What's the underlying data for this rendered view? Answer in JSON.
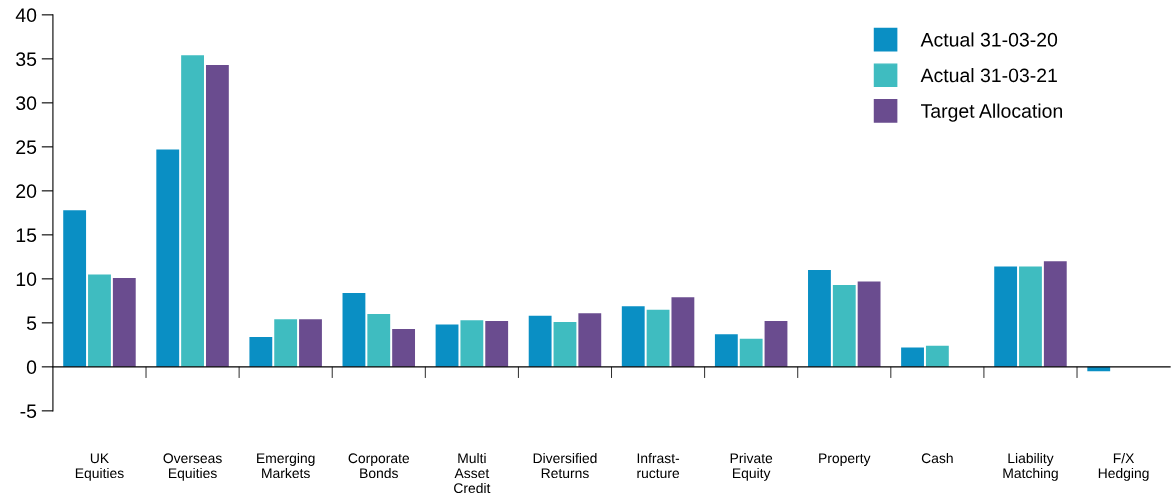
{
  "chart_data": {
    "type": "bar",
    "categories": [
      "UK\nEquities",
      "Overseas\nEquities",
      "Emerging\nMarkets",
      "Corporate\nBonds",
      "Multi\nAsset\nCredit",
      "Diversified\nReturns",
      "Infrast-\nructure",
      "Private\nEquity",
      "Property",
      "Cash",
      "Liability\nMatching",
      "F/X\nHedging"
    ],
    "series": [
      {
        "name": "Actual 31-03-20",
        "color": "#0a8fc4",
        "values": [
          17.8,
          24.7,
          3.4,
          8.4,
          4.8,
          5.8,
          6.9,
          3.7,
          11,
          2.2,
          11.4,
          -0.5
        ]
      },
      {
        "name": "Actual 31-03-21",
        "color": "#3fbcc0",
        "values": [
          10.5,
          35.4,
          5.4,
          6,
          5.3,
          5.1,
          6.5,
          3.2,
          9.3,
          2.4,
          11.4,
          null
        ]
      },
      {
        "name": "Target Allocation",
        "color": "#6a4c8f",
        "values": [
          10.1,
          34.3,
          5.4,
          4.3,
          5.2,
          6.1,
          7.9,
          5.2,
          9.7,
          null,
          12,
          null
        ]
      }
    ],
    "ylim": [
      -5,
      40
    ],
    "yticks": [
      -5,
      0,
      5,
      10,
      15,
      20,
      25,
      30,
      35,
      40
    ],
    "legend": "top right"
  }
}
